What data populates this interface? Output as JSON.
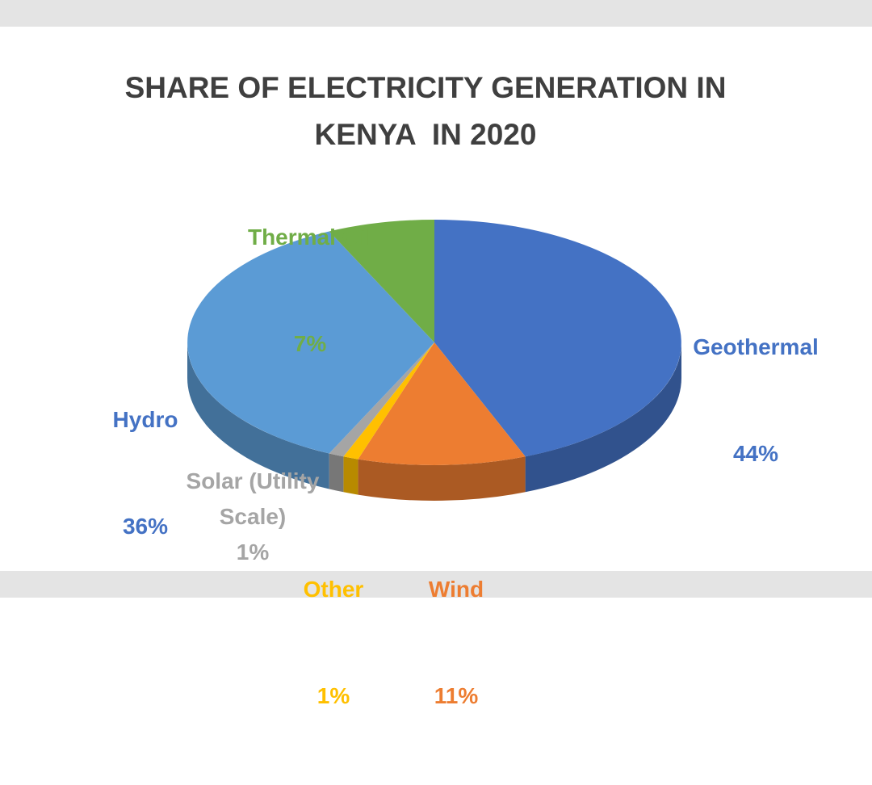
{
  "page": {
    "background_color": "#ffffff",
    "frame_band_color": "#e4e4e4"
  },
  "title": {
    "line1": "SHARE OF ELECTRICITY GENERATION IN",
    "line2": "KENYA  IN 2020",
    "color": "#3f3f3f"
  },
  "chart_data": {
    "type": "pie",
    "is_3d": true,
    "title": "SHARE OF ELECTRICITY GENERATION IN KENYA IN 2020",
    "units": "%",
    "start_angle_deg": 0,
    "direction": "clockwise",
    "labels_position": "outside",
    "legend": "none",
    "slices": [
      {
        "name": "Geothermal",
        "value": 44,
        "pct_label": "44%",
        "color": "#4472C4",
        "label_color": "#4472C4"
      },
      {
        "name": "Wind",
        "value": 11,
        "pct_label": "11%",
        "color": "#ED7D31",
        "label_color": "#ED7D31"
      },
      {
        "name": "Other",
        "value": 1,
        "pct_label": "1%",
        "color": "#FFC000",
        "label_color": "#FFC000"
      },
      {
        "name": "Solar (Utility Scale)",
        "value": 1,
        "pct_label": "1%",
        "color": "#A5A5A5",
        "label_color": "#A5A5A5"
      },
      {
        "name": "Hydro",
        "value": 36,
        "pct_label": "36%",
        "color": "#5B9BD5",
        "label_color": "#4472C4"
      },
      {
        "name": "Thermal Oil",
        "value": 7,
        "pct_label": "7%",
        "color": "#70AD47",
        "label_color": "#70AD47"
      }
    ]
  }
}
